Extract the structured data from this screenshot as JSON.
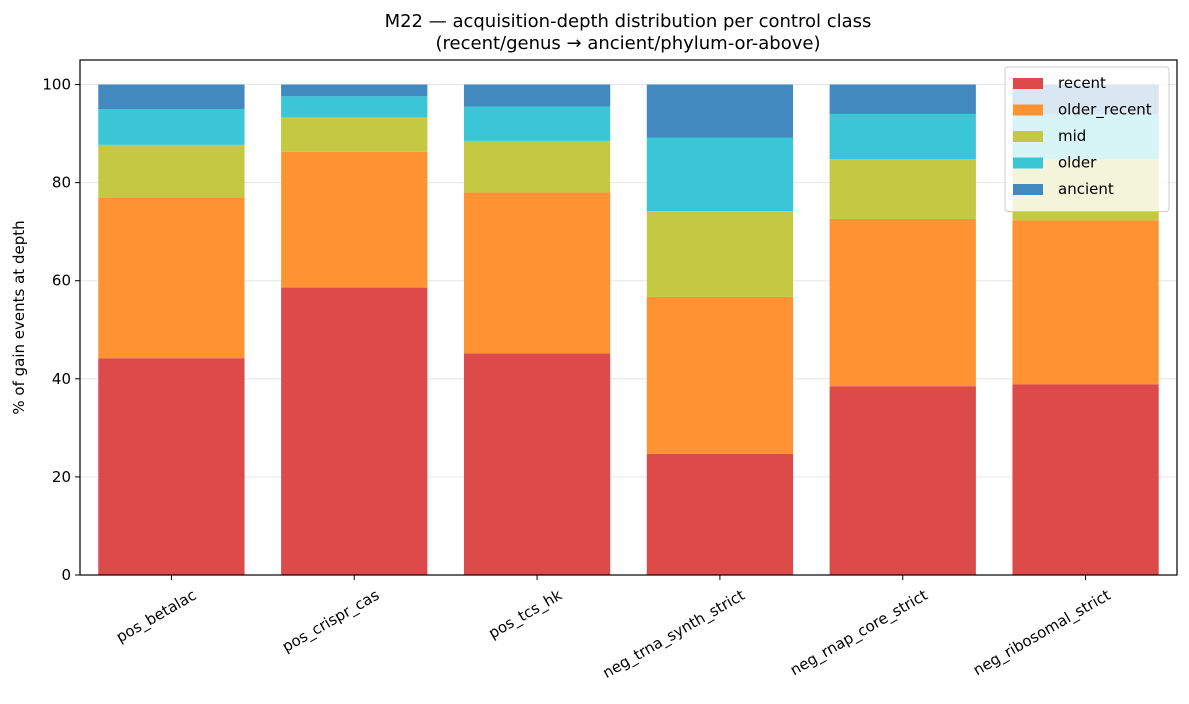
{
  "chart_data": {
    "type": "bar",
    "stacked": true,
    "title": "M22 — acquisition-depth distribution per control class",
    "subtitle": "(recent/genus → ancient/phylum-or-above)",
    "xlabel": "",
    "ylabel": "% of gain events at depth",
    "ylim": [
      0,
      105
    ],
    "yticks": [
      0,
      20,
      40,
      60,
      80,
      100
    ],
    "grid": "y",
    "legend_position": "top-right",
    "categories": [
      "pos_betalac",
      "pos_crispr_cas",
      "pos_tcs_hk",
      "neg_trna_synth_strict",
      "neg_rnap_core_strict",
      "neg_ribosomal_strict"
    ],
    "series": [
      {
        "name": "recent",
        "color": "#dc4a4a",
        "values": [
          44.2,
          58.6,
          45.2,
          24.7,
          38.5,
          38.9
        ]
      },
      {
        "name": "older_recent",
        "color": "#ff9333",
        "values": [
          32.8,
          27.7,
          32.8,
          32.0,
          34.1,
          33.4
        ]
      },
      {
        "name": "mid",
        "color": "#c4c843",
        "values": [
          10.7,
          7.0,
          10.5,
          17.5,
          12.2,
          12.5
        ]
      },
      {
        "name": "older",
        "color": "#3bc6d8",
        "values": [
          7.3,
          4.3,
          7.0,
          15.0,
          9.2,
          9.2
        ]
      },
      {
        "name": "ancient",
        "color": "#4189be",
        "values": [
          5.0,
          2.4,
          4.5,
          10.8,
          6.0,
          6.0
        ]
      }
    ]
  }
}
